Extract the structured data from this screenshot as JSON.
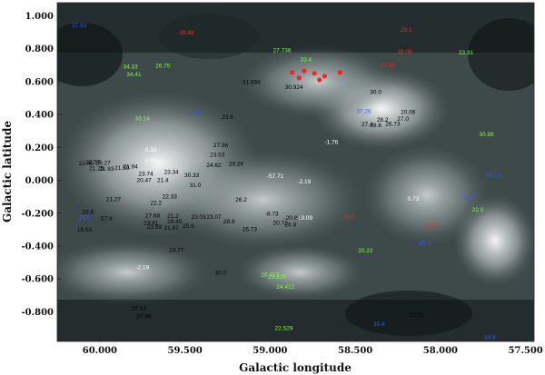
{
  "chart_data": {
    "type": "scatter",
    "title": "",
    "xlabel": "Galactic longitude",
    "ylabel": "Galactic latitude",
    "xlim": [
      60.25,
      57.45
    ],
    "ylim": [
      -0.98,
      1.08
    ],
    "x_ticks": [
      60.0,
      59.5,
      59.0,
      58.5,
      58.0,
      57.5
    ],
    "x_tick_labels": [
      "60.000",
      "59.500",
      "59.000",
      "58.500",
      "58.000",
      "57.500"
    ],
    "y_ticks": [
      1.0,
      0.8,
      0.6,
      0.4,
      0.2,
      0.0,
      -0.2,
      -0.4,
      -0.6,
      -0.8
    ],
    "y_tick_labels": [
      "1.000",
      "0.800",
      "0.600",
      "0.400",
      "0.200",
      "0.000",
      "-0.200",
      "-0.400",
      "-0.600",
      "-0.800"
    ],
    "grid": false,
    "colors": {
      "black": "#000000",
      "white": "#ffffff",
      "red": "#ff2020",
      "green": "#7cff3a",
      "blue": "#3a4dff"
    },
    "points": [
      {
        "x": 60.12,
        "y": 0.93,
        "label": "37.52",
        "color": "blue"
      },
      {
        "x": 59.49,
        "y": 0.886,
        "label": "38.88",
        "color": "red"
      },
      {
        "x": 58.2,
        "y": 0.904,
        "label": "29.1",
        "color": "red"
      },
      {
        "x": 58.93,
        "y": 0.78,
        "label": "27.736",
        "color": "green"
      },
      {
        "x": 58.79,
        "y": 0.725,
        "label": "33.4",
        "color": "green"
      },
      {
        "x": 58.21,
        "y": 0.771,
        "label": "28.08",
        "color": "red"
      },
      {
        "x": 57.85,
        "y": 0.765,
        "label": "23.31",
        "color": "green"
      },
      {
        "x": 59.82,
        "y": 0.68,
        "label": "34.33",
        "color": "green"
      },
      {
        "x": 59.63,
        "y": 0.685,
        "label": "26.75",
        "color": "green"
      },
      {
        "x": 59.8,
        "y": 0.634,
        "label": "34.41",
        "color": "green"
      },
      {
        "x": 58.31,
        "y": 0.687,
        "label": "27.93",
        "color": "red"
      },
      {
        "x": 58.87,
        "y": 0.645,
        "label": "",
        "color": "red"
      },
      {
        "x": 58.8,
        "y": 0.655,
        "label": "",
        "color": "red"
      },
      {
        "x": 58.74,
        "y": 0.64,
        "label": "",
        "color": "red"
      },
      {
        "x": 58.68,
        "y": 0.622,
        "label": "",
        "color": "red"
      },
      {
        "x": 58.59,
        "y": 0.645,
        "label": "",
        "color": "red"
      },
      {
        "x": 58.83,
        "y": 0.612,
        "label": "",
        "color": "red"
      },
      {
        "x": 58.71,
        "y": 0.6,
        "label": "",
        "color": "red"
      },
      {
        "x": 59.11,
        "y": 0.585,
        "label": "31.668",
        "color": "black"
      },
      {
        "x": 58.86,
        "y": 0.555,
        "label": "30.924",
        "color": "black"
      },
      {
        "x": 58.38,
        "y": 0.526,
        "label": "30.0",
        "color": "black"
      },
      {
        "x": 59.75,
        "y": 0.365,
        "label": "33.14",
        "color": "green"
      },
      {
        "x": 59.44,
        "y": 0.398,
        "label": "37.9",
        "color": "blue"
      },
      {
        "x": 59.25,
        "y": 0.372,
        "label": "23.6",
        "color": "black"
      },
      {
        "x": 58.45,
        "y": 0.41,
        "label": "37.26",
        "color": "blue"
      },
      {
        "x": 58.19,
        "y": 0.403,
        "label": "20.06",
        "color": "black"
      },
      {
        "x": 58.34,
        "y": 0.357,
        "label": "28.2",
        "color": "black"
      },
      {
        "x": 58.22,
        "y": 0.362,
        "label": "27.0",
        "color": "black"
      },
      {
        "x": 58.43,
        "y": 0.328,
        "label": "27.4",
        "color": "black"
      },
      {
        "x": 58.38,
        "y": 0.323,
        "label": "28.6",
        "color": "black"
      },
      {
        "x": 58.28,
        "y": 0.333,
        "label": "26.73",
        "color": "black"
      },
      {
        "x": 57.73,
        "y": 0.267,
        "label": "30.88",
        "color": "green"
      },
      {
        "x": 58.64,
        "y": 0.221,
        "label": "-1.76",
        "color": "white"
      },
      {
        "x": 59.29,
        "y": 0.203,
        "label": "27.56",
        "color": "black"
      },
      {
        "x": 59.7,
        "y": 0.175,
        "label": "0.33",
        "color": "white"
      },
      {
        "x": 59.7,
        "y": 0.112,
        "label": "0.60",
        "color": "white"
      },
      {
        "x": 59.31,
        "y": 0.145,
        "label": "23.53",
        "color": "black"
      },
      {
        "x": 59.2,
        "y": 0.088,
        "label": "29.26",
        "color": "black"
      },
      {
        "x": 59.33,
        "y": 0.079,
        "label": "24.62",
        "color": "black"
      },
      {
        "x": 60.08,
        "y": 0.092,
        "label": "22.45",
        "color": "black"
      },
      {
        "x": 60.04,
        "y": 0.1,
        "label": "22.57",
        "color": "black"
      },
      {
        "x": 59.98,
        "y": 0.095,
        "label": "28.27",
        "color": "black"
      },
      {
        "x": 60.02,
        "y": 0.06,
        "label": "21.25",
        "color": "black"
      },
      {
        "x": 59.96,
        "y": 0.058,
        "label": "21.93",
        "color": "black"
      },
      {
        "x": 59.87,
        "y": 0.064,
        "label": "21.59",
        "color": "black"
      },
      {
        "x": 59.82,
        "y": 0.072,
        "label": "21.94",
        "color": "black"
      },
      {
        "x": 59.73,
        "y": 0.028,
        "label": "23.74",
        "color": "black"
      },
      {
        "x": 59.74,
        "y": -0.01,
        "label": "20.47",
        "color": "black"
      },
      {
        "x": 59.63,
        "y": -0.01,
        "label": "21.4",
        "color": "black"
      },
      {
        "x": 59.58,
        "y": 0.04,
        "label": "23.34",
        "color": "black"
      },
      {
        "x": 59.46,
        "y": 0.02,
        "label": "30.33",
        "color": "black"
      },
      {
        "x": 58.97,
        "y": 0.015,
        "label": "-57.71",
        "color": "white"
      },
      {
        "x": 58.8,
        "y": -0.02,
        "label": "-2.19",
        "color": "white"
      },
      {
        "x": 59.44,
        "y": -0.04,
        "label": "31.0",
        "color": "black"
      },
      {
        "x": 59.92,
        "y": -0.128,
        "label": "21.27",
        "color": "black"
      },
      {
        "x": 59.59,
        "y": -0.11,
        "label": "22.33",
        "color": "black"
      },
      {
        "x": 59.67,
        "y": -0.15,
        "label": "22.2",
        "color": "black"
      },
      {
        "x": 59.17,
        "y": -0.13,
        "label": "26.2",
        "color": "black"
      },
      {
        "x": 58.16,
        "y": -0.125,
        "label": "0.73",
        "color": "white"
      },
      {
        "x": 57.69,
        "y": 0.02,
        "label": "37.13",
        "color": "blue"
      },
      {
        "x": 57.83,
        "y": -0.118,
        "label": "58.7",
        "color": "blue"
      },
      {
        "x": 57.78,
        "y": -0.19,
        "label": "22.0",
        "color": "green"
      },
      {
        "x": 60.07,
        "y": -0.205,
        "label": "23.8",
        "color": "black"
      },
      {
        "x": 60.09,
        "y": -0.24,
        "label": "25.5",
        "color": "blue"
      },
      {
        "x": 59.96,
        "y": -0.245,
        "label": "57.8",
        "color": "black"
      },
      {
        "x": 59.69,
        "y": -0.225,
        "label": "27.68",
        "color": "black"
      },
      {
        "x": 59.57,
        "y": -0.23,
        "label": "21.2",
        "color": "black"
      },
      {
        "x": 59.42,
        "y": -0.235,
        "label": "23.03",
        "color": "black"
      },
      {
        "x": 59.33,
        "y": -0.235,
        "label": "23.07",
        "color": "black"
      },
      {
        "x": 59.7,
        "y": -0.27,
        "label": "23.91",
        "color": "black"
      },
      {
        "x": 59.56,
        "y": -0.262,
        "label": "28.45",
        "color": "black"
      },
      {
        "x": 59.24,
        "y": -0.262,
        "label": "28.8",
        "color": "black"
      },
      {
        "x": 59.68,
        "y": -0.295,
        "label": "23.59",
        "color": "black"
      },
      {
        "x": 59.58,
        "y": -0.3,
        "label": "21.87",
        "color": "black"
      },
      {
        "x": 59.48,
        "y": -0.29,
        "label": "25.6",
        "color": "black"
      },
      {
        "x": 58.99,
        "y": -0.215,
        "label": "-8.73",
        "color": "black"
      },
      {
        "x": 58.87,
        "y": -0.24,
        "label": "-20.83",
        "color": "black"
      },
      {
        "x": 58.8,
        "y": -0.24,
        "label": "-19.09",
        "color": "white"
      },
      {
        "x": 58.94,
        "y": -0.27,
        "label": "20.72",
        "color": "black"
      },
      {
        "x": 58.88,
        "y": -0.28,
        "label": "26.8",
        "color": "black"
      },
      {
        "x": 59.12,
        "y": -0.31,
        "label": "26.73",
        "color": "black"
      },
      {
        "x": 58.54,
        "y": -0.232,
        "label": "16.2",
        "color": "red"
      },
      {
        "x": 58.05,
        "y": -0.29,
        "label": "22.87",
        "color": "red"
      },
      {
        "x": 58.09,
        "y": -0.395,
        "label": "65.3",
        "color": "blue"
      },
      {
        "x": 60.09,
        "y": -0.312,
        "label": "18.59",
        "color": "black"
      },
      {
        "x": 59.55,
        "y": -0.435,
        "label": "24.77",
        "color": "black"
      },
      {
        "x": 58.44,
        "y": -0.44,
        "label": "20.22",
        "color": "green"
      },
      {
        "x": 59.75,
        "y": -0.54,
        "label": "-2.19",
        "color": "white"
      },
      {
        "x": 59.29,
        "y": -0.575,
        "label": "30.0",
        "color": "black"
      },
      {
        "x": 59.0,
        "y": -0.585,
        "label": "26.827",
        "color": "green"
      },
      {
        "x": 58.96,
        "y": -0.6,
        "label": "25.929",
        "color": "green"
      },
      {
        "x": 58.91,
        "y": -0.66,
        "label": "24.412",
        "color": "green"
      },
      {
        "x": 59.77,
        "y": -0.79,
        "label": "27.13",
        "color": "black"
      },
      {
        "x": 59.74,
        "y": -0.84,
        "label": "27.96",
        "color": "black"
      },
      {
        "x": 58.14,
        "y": -0.83,
        "label": "22.51",
        "color": "black"
      },
      {
        "x": 58.36,
        "y": -0.885,
        "label": "35.4",
        "color": "blue"
      },
      {
        "x": 58.92,
        "y": -0.912,
        "label": "22.529",
        "color": "green"
      },
      {
        "x": 57.71,
        "y": -0.965,
        "label": "34.8",
        "color": "blue"
      }
    ]
  }
}
